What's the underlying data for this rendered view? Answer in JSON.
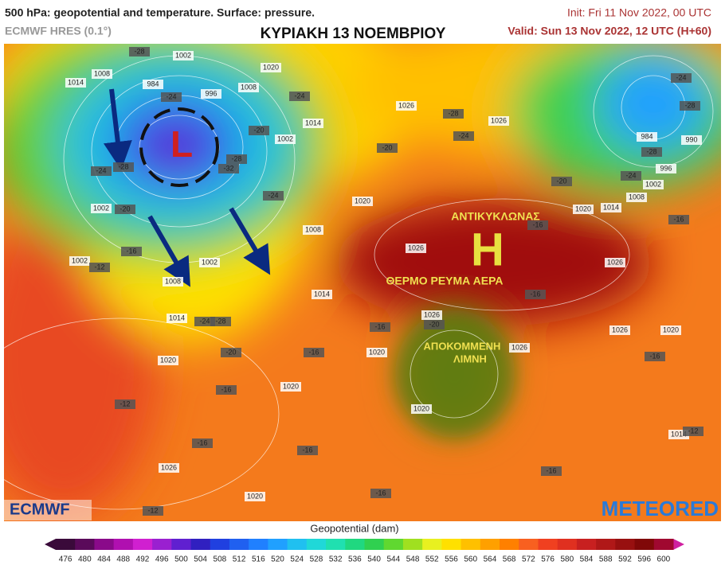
{
  "header": {
    "title": "500 hPa: geopotential and temperature. Surface: pressure.",
    "model": "ECMWF HRES (0.1°)",
    "headline": "ΚΥΡΙΑΚΗ 13 ΝΟΕΜΒΡΙΟΥ",
    "init": "Init: Fri 11 Nov 2022, 00 UTC",
    "valid": "Valid: Sun 13 Nov 2022, 12 UTC (H+60)"
  },
  "map": {
    "low_symbol": "L",
    "high_symbol": "H",
    "anticyclone": "ΑΝΤΙΚΥΚΛΩΝΑΣ",
    "warm_flow": "ΘΕΡΜΟ ΡΕΥΜΑ ΑΕΡΑ",
    "cutoff_low": [
      "ΑΠΟΚΟΜΜΕΝΗ",
      "ΛΙΜΝΗ"
    ],
    "logo_left": "ECMWF",
    "logo_right": "METEORED",
    "labels": [
      "-28",
      "1002",
      "1008",
      "1014",
      "984",
      "-24",
      "996",
      "1008",
      "1020",
      "-24",
      "1014",
      "-20",
      "1002",
      "-28",
      "-32",
      "-24",
      "-28",
      "1002",
      "-20",
      "-24",
      "1020",
      "1008",
      "-16",
      "1002",
      "-12",
      "1002",
      "1008",
      "1014",
      "1014",
      "-24",
      "-28",
      "-20",
      "1020",
      "-16",
      "1020",
      "-16",
      "1020",
      "-12",
      "-16",
      "1026",
      "-16",
      "1020",
      "-12",
      "-16",
      "1026",
      "-28",
      "1026",
      "-24",
      "-20",
      "-20",
      "1020",
      "1014",
      "1008",
      "-24",
      "1002",
      "996",
      "-28",
      "984",
      "990",
      "-24",
      "-28",
      "-16",
      "1026",
      "-16",
      "-16",
      "1026",
      "1020",
      "1026",
      "-20",
      "-16",
      "1026",
      "-16",
      "1020",
      "1014",
      "-12",
      "-16",
      "1026"
    ]
  },
  "colorbar": {
    "label": "Geopotential (dam)",
    "ticks": [
      476,
      480,
      484,
      488,
      492,
      496,
      500,
      504,
      508,
      512,
      516,
      520,
      524,
      528,
      532,
      536,
      540,
      544,
      548,
      552,
      556,
      560,
      564,
      568,
      572,
      576,
      580,
      584,
      588,
      592,
      596,
      600
    ],
    "colors": [
      "#3a0a3a",
      "#5a0a5a",
      "#8a0a8a",
      "#b010b0",
      "#d020d0",
      "#9a20d0",
      "#6020d0",
      "#3020c0",
      "#2040e0",
      "#2060f0",
      "#2080ff",
      "#20a0ff",
      "#20c0f0",
      "#20d8d8",
      "#20e0b0",
      "#20d880",
      "#30d050",
      "#60d830",
      "#a0e020",
      "#e8f020",
      "#ffe000",
      "#ffc000",
      "#ffa000",
      "#ff8000",
      "#f86020",
      "#f04020",
      "#e03020",
      "#c82020",
      "#b01818",
      "#981010",
      "#800808",
      "#a00830"
    ]
  }
}
